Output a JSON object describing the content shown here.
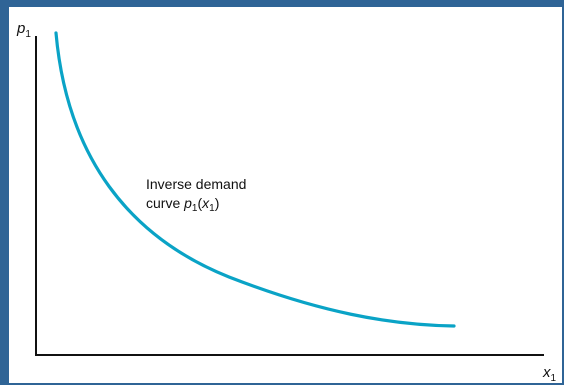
{
  "diagram": {
    "frame_color": "#2f6496",
    "curve_color": "#0aa3c6",
    "y_axis": {
      "label_main": "p",
      "label_sub": "1"
    },
    "x_axis": {
      "label_main": "x",
      "label_sub": "1"
    },
    "curve_label": {
      "line1": "Inverse demand",
      "line2_text": "curve ",
      "line2_fn_main": "p",
      "line2_fn_sub": "1",
      "line2_open": "(",
      "line2_arg_main": "x",
      "line2_arg_sub": "1",
      "line2_close": ")"
    }
  }
}
